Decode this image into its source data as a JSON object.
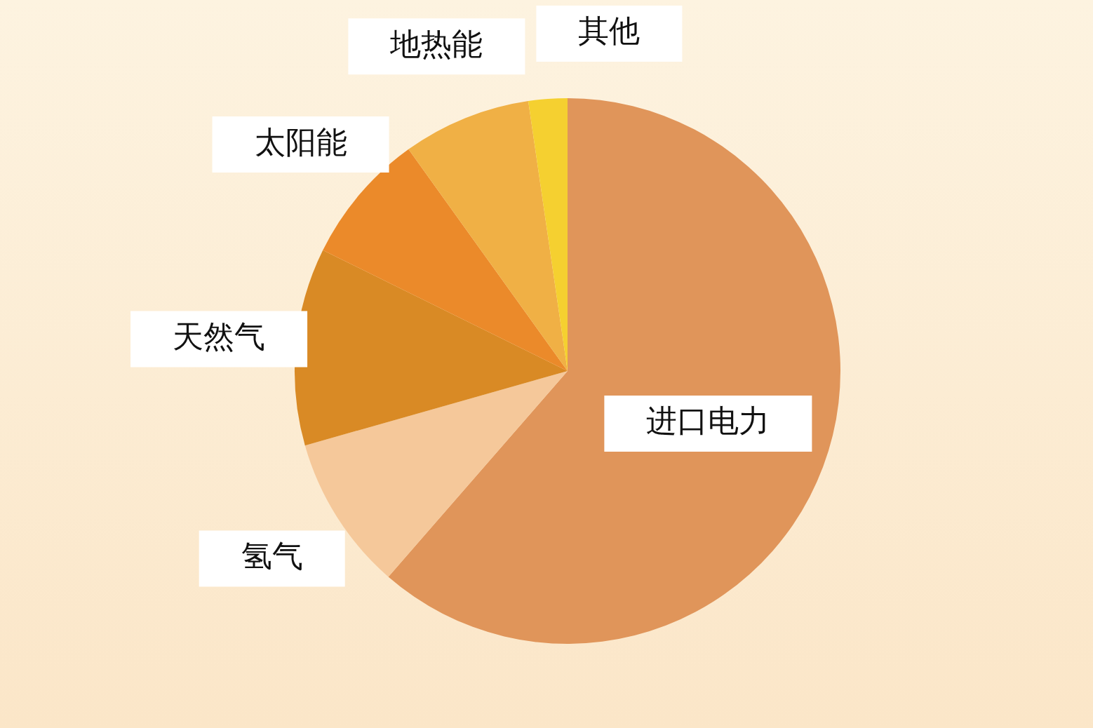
{
  "chart_data": {
    "type": "pie",
    "categories": [
      "进口电力",
      "氢气",
      "天然气",
      "太阳能",
      "地热能",
      "其他"
    ],
    "values": [
      61.4,
      9.2,
      11.7,
      7.8,
      7.6,
      2.3
    ],
    "colors": [
      "#e0955a",
      "#f5c89a",
      "#d98a25",
      "#eb8a2a",
      "#f0b045",
      "#f5d030"
    ],
    "legend": false
  }
}
